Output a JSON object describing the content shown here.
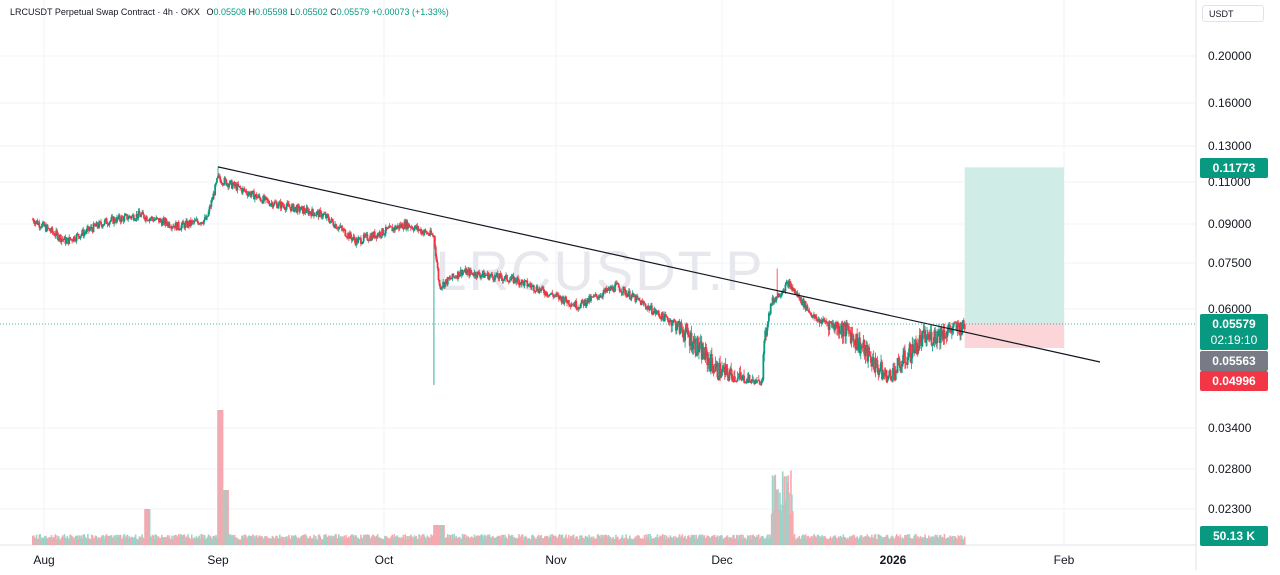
{
  "legend": {
    "symbol": "LRCUSDT Perpetual Swap Contract · 4h · OKX",
    "o_label": "O",
    "o": "0.05508",
    "h_label": "H",
    "h": "0.05598",
    "l_label": "L",
    "l": "0.05502",
    "c_label": "C",
    "c": "0.05579",
    "change": "+0.00073 (+1.33%)"
  },
  "watermark": "LRCUSDT.P",
  "unit": "USDT",
  "colors": {
    "up": "#089981",
    "down": "#f23645",
    "trendline": "#131722",
    "target_zone": "#cfece6",
    "stop_zone": "#fbd5d8",
    "volume_up": "#9ad3c8",
    "volume_down": "#f6a8ae"
  },
  "price_badges": {
    "target": "0.11773",
    "last": "0.05579",
    "countdown": "02:19:10",
    "prev": "0.05563",
    "stop": "0.04996",
    "volume": "50.13 K"
  },
  "chart_data": {
    "type": "candlestick",
    "timeframe": "4h",
    "y_scale": "log",
    "y_ticks": [
      "0.20000",
      "0.16000",
      "0.13000",
      "0.11000",
      "0.09000",
      "0.07500",
      "0.06000",
      "0.03400",
      "0.02800",
      "0.02300"
    ],
    "x_ticks": [
      "Aug",
      "Sep",
      "Oct",
      "Nov",
      "Dec",
      "2026",
      "Feb"
    ],
    "approx_close_path": [
      {
        "date": "2025-07-30",
        "close": 0.092
      },
      {
        "date": "2025-08-05",
        "close": 0.083
      },
      {
        "date": "2025-08-12",
        "close": 0.091
      },
      {
        "date": "2025-08-18",
        "close": 0.094
      },
      {
        "date": "2025-08-25",
        "close": 0.089
      },
      {
        "date": "2025-08-30",
        "close": 0.092
      },
      {
        "date": "2025-09-01",
        "close": 0.112
      },
      {
        "date": "2025-09-10",
        "close": 0.1
      },
      {
        "date": "2025-09-20",
        "close": 0.094
      },
      {
        "date": "2025-09-26",
        "close": 0.083
      },
      {
        "date": "2025-10-05",
        "close": 0.09
      },
      {
        "date": "2025-10-10",
        "close": 0.085
      },
      {
        "date": "2025-10-11",
        "close": 0.067
      },
      {
        "date": "2025-10-15",
        "close": 0.072
      },
      {
        "date": "2025-10-25",
        "close": 0.069
      },
      {
        "date": "2025-11-05",
        "close": 0.061
      },
      {
        "date": "2025-11-12",
        "close": 0.067
      },
      {
        "date": "2025-11-20",
        "close": 0.058
      },
      {
        "date": "2025-11-30",
        "close": 0.051
      },
      {
        "date": "2025-12-08",
        "close": 0.049
      },
      {
        "date": "2025-12-10",
        "close": 0.062
      },
      {
        "date": "2025-12-13",
        "close": 0.068
      },
      {
        "date": "2025-12-18",
        "close": 0.057
      },
      {
        "date": "2025-12-24",
        "close": 0.055
      },
      {
        "date": "2025-12-31",
        "close": 0.05
      },
      {
        "date": "2026-01-06",
        "close": 0.054
      },
      {
        "date": "2026-01-14",
        "close": 0.05579
      }
    ],
    "spikes": [
      {
        "date": "2025-10-10",
        "low": 0.048
      },
      {
        "date": "2025-09-01",
        "high": 0.118
      },
      {
        "date": "2025-12-11",
        "high": 0.073
      }
    ],
    "trendline": {
      "from": {
        "date": "2025-09-01",
        "price": 0.118
      },
      "to": {
        "date": "2026-02-05",
        "price": 0.048
      }
    },
    "long_position": {
      "start": "2026-01-14",
      "end": "2026-02-01",
      "entry": 0.05579,
      "target": 0.11773,
      "stop": 0.04996
    }
  }
}
